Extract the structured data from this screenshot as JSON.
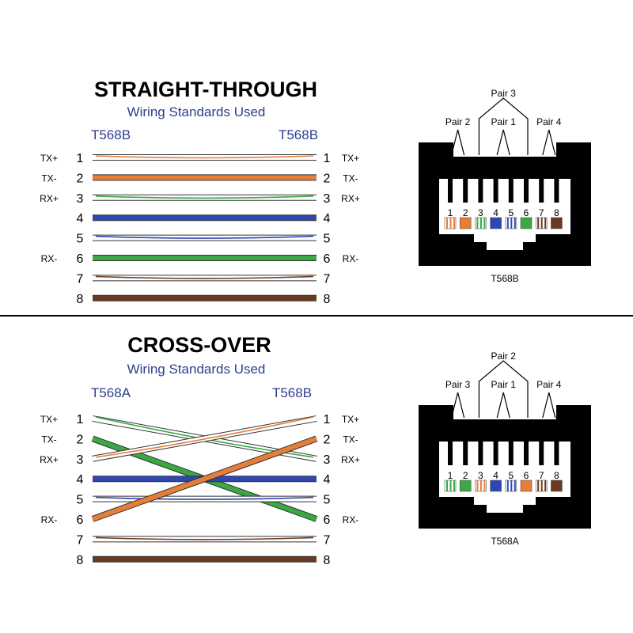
{
  "sections": [
    {
      "id": "straight",
      "title": "STRAIGHT-THROUGH",
      "subtitle": "Wiring Standards Used",
      "left_standard": "T568B",
      "right_standard": "T568B",
      "left_pins": [
        {
          "n": "1",
          "sig": "TX+"
        },
        {
          "n": "2",
          "sig": "TX-"
        },
        {
          "n": "3",
          "sig": "RX+"
        },
        {
          "n": "4",
          "sig": ""
        },
        {
          "n": "5",
          "sig": ""
        },
        {
          "n": "6",
          "sig": "RX-"
        },
        {
          "n": "7",
          "sig": ""
        },
        {
          "n": "8",
          "sig": ""
        }
      ],
      "right_pins": [
        {
          "n": "1",
          "sig": "TX+"
        },
        {
          "n": "2",
          "sig": "TX-"
        },
        {
          "n": "3",
          "sig": "RX+"
        },
        {
          "n": "4",
          "sig": ""
        },
        {
          "n": "5",
          "sig": ""
        },
        {
          "n": "6",
          "sig": "RX-"
        },
        {
          "n": "7",
          "sig": ""
        },
        {
          "n": "8",
          "sig": ""
        }
      ],
      "wires": [
        {
          "from": 1,
          "to": 1,
          "color": "#e67e3a",
          "striped": true
        },
        {
          "from": 2,
          "to": 2,
          "color": "#e67e3a",
          "striped": false
        },
        {
          "from": 3,
          "to": 3,
          "color": "#3aa843",
          "striped": true
        },
        {
          "from": 4,
          "to": 4,
          "color": "#2f47b3",
          "striped": false
        },
        {
          "from": 5,
          "to": 5,
          "color": "#2f47b3",
          "striped": true
        },
        {
          "from": 6,
          "to": 6,
          "color": "#3aa843",
          "striped": false
        },
        {
          "from": 7,
          "to": 7,
          "color": "#6b3a1e",
          "striped": true
        },
        {
          "from": 8,
          "to": 8,
          "color": "#6b3a1e",
          "striped": false
        }
      ],
      "connector": {
        "label": "T568B",
        "pair_labels": {
          "outer_left": "Pair 2",
          "top": "Pair 3",
          "center": "Pair 1",
          "outer_right": "Pair 4"
        },
        "pin_numbers": [
          "1",
          "2",
          "3",
          "4",
          "5",
          "6",
          "7",
          "8"
        ],
        "pins": [
          {
            "color": "#e67e3a",
            "striped": true
          },
          {
            "color": "#e67e3a",
            "striped": false
          },
          {
            "color": "#3aa843",
            "striped": true
          },
          {
            "color": "#2f47b3",
            "striped": false
          },
          {
            "color": "#2f47b3",
            "striped": true
          },
          {
            "color": "#3aa843",
            "striped": false
          },
          {
            "color": "#6b3a1e",
            "striped": true
          },
          {
            "color": "#6b3a1e",
            "striped": false
          }
        ]
      }
    },
    {
      "id": "crossover",
      "title": "CROSS-OVER",
      "subtitle": "Wiring Standards Used",
      "left_standard": "T568A",
      "right_standard": "T568B",
      "left_pins": [
        {
          "n": "1",
          "sig": "TX+"
        },
        {
          "n": "2",
          "sig": "TX-"
        },
        {
          "n": "3",
          "sig": "RX+"
        },
        {
          "n": "4",
          "sig": ""
        },
        {
          "n": "5",
          "sig": ""
        },
        {
          "n": "6",
          "sig": "RX-"
        },
        {
          "n": "7",
          "sig": ""
        },
        {
          "n": "8",
          "sig": ""
        }
      ],
      "right_pins": [
        {
          "n": "1",
          "sig": "TX+"
        },
        {
          "n": "2",
          "sig": "TX-"
        },
        {
          "n": "3",
          "sig": "RX+"
        },
        {
          "n": "4",
          "sig": ""
        },
        {
          "n": "5",
          "sig": ""
        },
        {
          "n": "6",
          "sig": "RX-"
        },
        {
          "n": "7",
          "sig": ""
        },
        {
          "n": "8",
          "sig": ""
        }
      ],
      "wires": [
        {
          "from": 1,
          "to": 3,
          "color": "#3aa843",
          "striped": true
        },
        {
          "from": 2,
          "to": 6,
          "color": "#3aa843",
          "striped": false
        },
        {
          "from": 3,
          "to": 1,
          "color": "#e67e3a",
          "striped": true
        },
        {
          "from": 4,
          "to": 4,
          "color": "#2f47b3",
          "striped": false
        },
        {
          "from": 5,
          "to": 5,
          "color": "#2f47b3",
          "striped": true
        },
        {
          "from": 6,
          "to": 2,
          "color": "#e67e3a",
          "striped": false
        },
        {
          "from": 7,
          "to": 7,
          "color": "#6b3a1e",
          "striped": true
        },
        {
          "from": 8,
          "to": 8,
          "color": "#6b3a1e",
          "striped": false
        }
      ],
      "connector": {
        "label": "T568A",
        "pair_labels": {
          "outer_left": "Pair 3",
          "top": "Pair 2",
          "center": "Pair 1",
          "outer_right": "Pair 4"
        },
        "pin_numbers": [
          "1",
          "2",
          "3",
          "4",
          "5",
          "6",
          "7",
          "8"
        ],
        "pins": [
          {
            "color": "#3aa843",
            "striped": true
          },
          {
            "color": "#3aa843",
            "striped": false
          },
          {
            "color": "#e67e3a",
            "striped": true
          },
          {
            "color": "#2f47b3",
            "striped": false
          },
          {
            "color": "#2f47b3",
            "striped": true
          },
          {
            "color": "#e67e3a",
            "striped": false
          },
          {
            "color": "#6b3a1e",
            "striped": true
          },
          {
            "color": "#6b3a1e",
            "striped": false
          }
        ]
      }
    }
  ],
  "colors": {
    "title": "#000000",
    "subtitle": "#2c3e8f",
    "standard_label": "#2c3e8f",
    "divider": "#000000",
    "connector_body": "#000000"
  }
}
